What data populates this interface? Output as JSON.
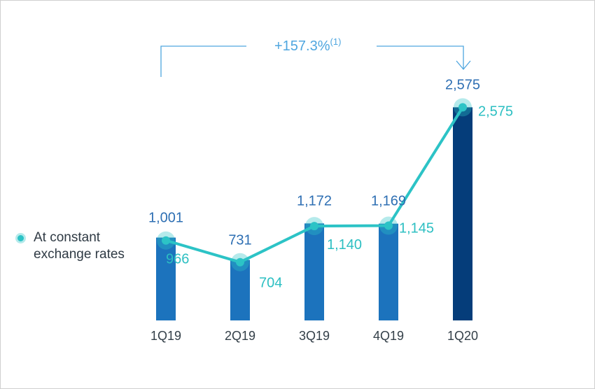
{
  "chart_data": {
    "type": "bar",
    "categories": [
      "1Q19",
      "2Q19",
      "3Q19",
      "4Q19",
      "1Q20"
    ],
    "series": [
      {
        "values": [
          1001,
          731,
          1172,
          1169,
          2575
        ]
      },
      {
        "name": "At constant exchange rates",
        "type": "line",
        "values": [
          966,
          704,
          1140,
          1145,
          2575
        ]
      }
    ],
    "bar_labels": [
      "1,001",
      "731",
      "1,172",
      "1,169",
      "2,575"
    ],
    "line_labels": [
      "966",
      "704",
      "1,140",
      "1,145",
      "2,575"
    ],
    "annotation": {
      "text": "+157.3%",
      "superscript": "(1)",
      "from": "1Q19",
      "to": "1Q20"
    },
    "ylim": [
      0,
      2800
    ],
    "grid": false,
    "legend_position": "left",
    "colors": {
      "bar": "#1c73bd",
      "bar_highlight": "#053d7a",
      "line": "#2cc3c6",
      "bar_label": "#2e6fb3",
      "line_label": "#2cbfc2",
      "annotation": "#4fa6df",
      "axis_label": "#333f48"
    }
  }
}
